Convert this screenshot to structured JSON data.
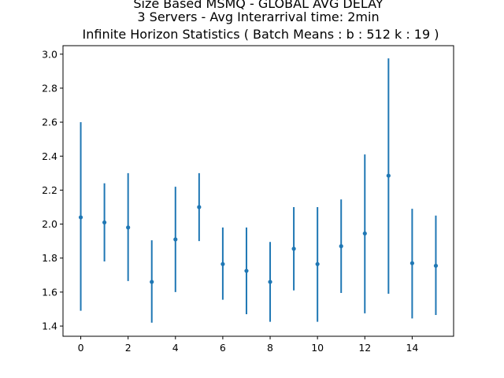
{
  "chart_data": {
    "type": "scatter",
    "error_bars": true,
    "title_lines": [
      "Size Based MSMQ - GLOBAL AVG DELAY",
      "3 Servers -  Avg Interarrival time: 2min",
      "Infinite Horizon Statistics ( Batch Means : b : 512  k : 19 )"
    ],
    "xlabel": "",
    "ylabel": "",
    "xlim": [
      -0.75,
      15.75
    ],
    "ylim": [
      1.34,
      3.05
    ],
    "x_ticks": [
      0,
      2,
      4,
      6,
      8,
      10,
      12,
      14
    ],
    "y_ticks": [
      1.4,
      1.6,
      1.8,
      2.0,
      2.2,
      2.4,
      2.6,
      2.8,
      3.0
    ],
    "y_tick_labels": [
      "1.4",
      "1.6",
      "1.8",
      "2.0",
      "2.2",
      "2.4",
      "2.6",
      "2.8",
      "3.0"
    ],
    "grid": false,
    "color": "#1f77b4",
    "series": [
      {
        "x": [
          0,
          1,
          2,
          3,
          4,
          5,
          6,
          7,
          8,
          9,
          10,
          11,
          12,
          13,
          14,
          15
        ],
        "y": [
          2.04,
          2.01,
          1.98,
          1.66,
          1.91,
          2.1,
          1.765,
          1.725,
          1.66,
          1.855,
          1.765,
          1.87,
          1.945,
          2.285,
          1.77,
          1.755
        ],
        "error_low": [
          1.49,
          1.78,
          1.665,
          1.42,
          1.6,
          1.9,
          1.555,
          1.47,
          1.425,
          1.61,
          1.425,
          1.595,
          1.475,
          1.59,
          1.445,
          1.465
        ],
        "error_high": [
          2.6,
          2.24,
          2.3,
          1.905,
          2.22,
          2.3,
          1.98,
          1.98,
          1.895,
          2.1,
          2.1,
          2.145,
          2.41,
          2.975,
          2.09,
          2.05
        ]
      }
    ]
  }
}
